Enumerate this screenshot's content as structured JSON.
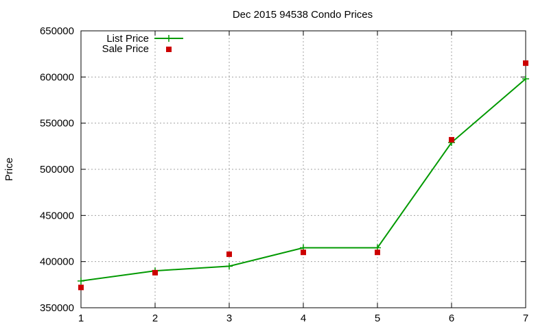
{
  "chart_data": {
    "type": "line",
    "title": "Dec 2015 94538 Condo Prices",
    "xlabel": "",
    "ylabel": "Price",
    "x": [
      1,
      2,
      3,
      4,
      5,
      6,
      7
    ],
    "xlim": [
      1,
      7
    ],
    "ylim": [
      350000,
      650000
    ],
    "xticks": [
      "1",
      "2",
      "3",
      "4",
      "5",
      "6",
      "7"
    ],
    "yticks": [
      "350000",
      "400000",
      "450000",
      "500000",
      "550000",
      "600000",
      "650000"
    ],
    "grid": true,
    "legend_position": "top-left",
    "series": [
      {
        "name": "List Price",
        "style": "line-with-plus-markers",
        "color": "#009900",
        "values": [
          379000,
          390000,
          395000,
          415000,
          415000,
          529000,
          598000
        ]
      },
      {
        "name": "Sale Price",
        "style": "square-markers",
        "color": "#cc0000",
        "values": [
          372000,
          388000,
          408000,
          410000,
          410000,
          532000,
          615000
        ]
      }
    ]
  }
}
